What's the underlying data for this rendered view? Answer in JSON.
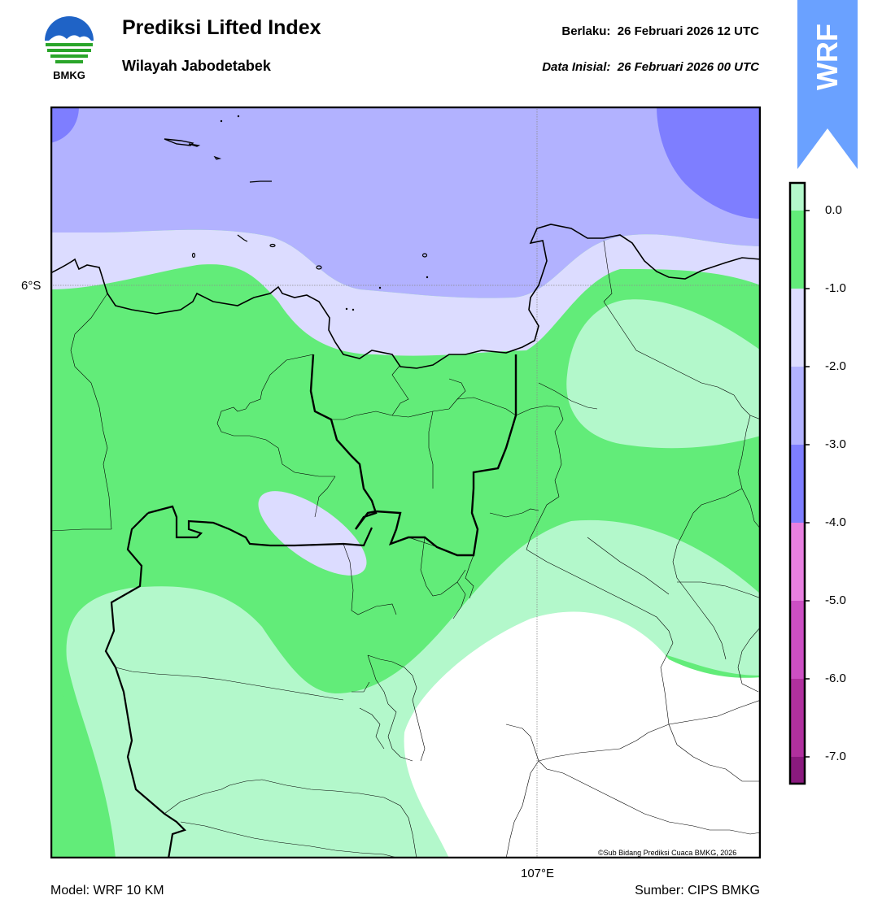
{
  "header": {
    "title": "Prediksi Lifted Index",
    "subtitle": "Wilayah Jabodetabek",
    "valid_label": "Berlaku:",
    "valid_time": "26 Februari 2026 12 UTC",
    "init_label": "Data Inisial:",
    "init_time": "26 Februari 2026 00 UTC"
  },
  "logo": {
    "text": "BMKG",
    "icon": "bmkg-logo-icon"
  },
  "badge": {
    "text": "WRF",
    "color": "#6aa1ff"
  },
  "map": {
    "lat_label": "6°S",
    "lon_label": "107°E",
    "copyright": "©Sub Bidang Prediksi Cuaca BMKG, 2026"
  },
  "footer": {
    "model": "Model: WRF 10 KM",
    "source": "Sumber: CIPS BMKG"
  },
  "colorbar": {
    "ticks": [
      "0.0",
      "-1.0",
      "-2.0",
      "-3.0",
      "-4.0",
      "-5.0",
      "-6.0",
      "-7.0"
    ],
    "colors": [
      "#b3f8cb",
      "#62ec79",
      "#dcdcff",
      "#b2b2ff",
      "#7e7eff",
      "#e880e0",
      "#cc4fc3",
      "#b0309e",
      "#8a1a7e"
    ]
  }
}
